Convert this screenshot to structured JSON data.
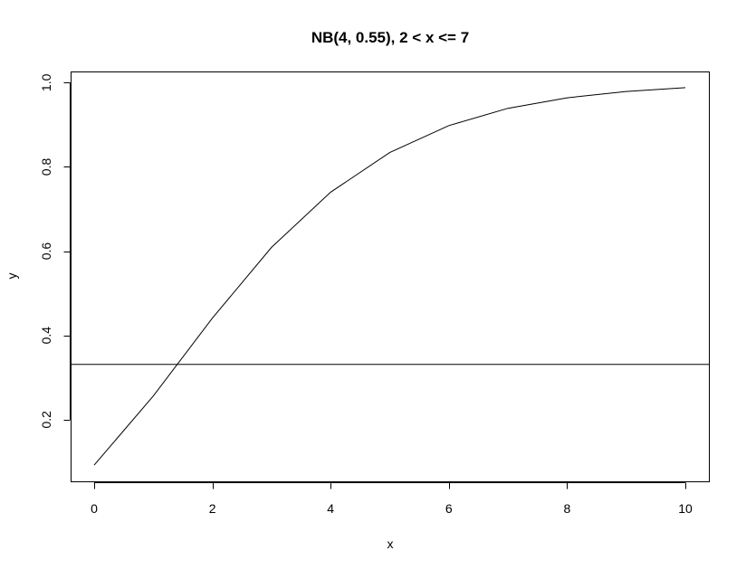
{
  "chart_data": {
    "type": "line",
    "title": "NB(4, 0.55), 2 < x <= 7",
    "xlabel": "x",
    "ylabel": "y",
    "xlim": [
      0,
      10
    ],
    "ylim": [
      0.09,
      0.99
    ],
    "x_ticks": [
      0,
      2,
      4,
      6,
      8,
      10
    ],
    "y_ticks": [
      0.2,
      0.4,
      0.6,
      0.8,
      1.0
    ],
    "x_tick_labels": [
      "0",
      "2",
      "4",
      "6",
      "8",
      "10"
    ],
    "y_tick_labels": [
      "0.2",
      "0.4",
      "0.6",
      "0.8",
      "1.0"
    ],
    "grid": false,
    "series": [
      {
        "x": [
          0,
          1,
          2,
          3,
          4,
          5,
          6,
          7,
          8,
          9,
          10
        ],
        "values": [
          0.092,
          0.256,
          0.441,
          0.609,
          0.74,
          0.834,
          0.898,
          0.939,
          0.964,
          0.979,
          0.988
        ]
      }
    ],
    "hline": 0.331
  }
}
